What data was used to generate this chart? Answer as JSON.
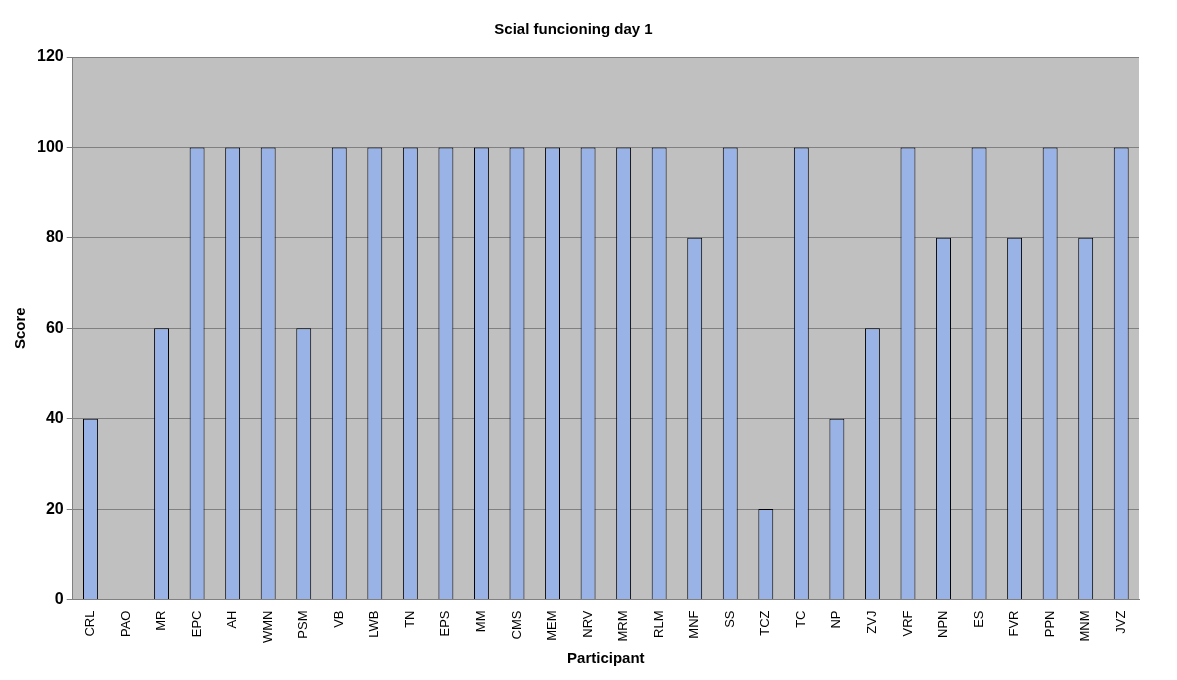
{
  "chart_data": {
    "type": "bar",
    "title": "Scial funcioning day 1",
    "xlabel": "Participant",
    "ylabel": "Score",
    "categories": [
      "CRL",
      "PAO",
      "MR",
      "EPC",
      "AH",
      "WMN",
      "PSM",
      "VB",
      "LWB",
      "TN",
      "EPS",
      "MM",
      "CMS",
      "MEM",
      "NRV",
      "MRM",
      "RLM",
      "MNF",
      "SS",
      "TCZ",
      "TC",
      "NP",
      "ZVJ",
      "VRF",
      "NPN",
      "ES",
      "FVR",
      "PPN",
      "MNM",
      "JVZ"
    ],
    "values": [
      40,
      0,
      60,
      100,
      100,
      100,
      60,
      100,
      100,
      100,
      100,
      100,
      100,
      100,
      100,
      100,
      100,
      80,
      100,
      20,
      100,
      40,
      60,
      100,
      80,
      100,
      80,
      100,
      80,
      100
    ],
    "color": "#99b3e6",
    "ylim": [
      0,
      120
    ],
    "yticks": [
      0,
      20,
      40,
      60,
      80,
      100,
      120
    ],
    "grid": "y",
    "legend": false
  }
}
